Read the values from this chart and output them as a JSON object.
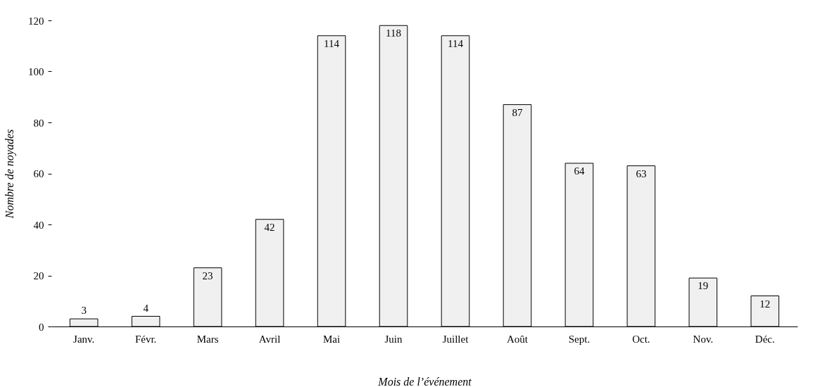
{
  "chart_data": {
    "type": "bar",
    "xlabel": "Mois de l’événement",
    "ylabel": "Nombre de noyades",
    "categories": [
      "Janv.",
      "Févr.",
      "Mars",
      "Avril",
      "Mai",
      "Juin",
      "Juillet",
      "Août",
      "Sept.",
      "Oct.",
      "Nov.",
      "Déc."
    ],
    "values": [
      3,
      4,
      23,
      42,
      114,
      118,
      114,
      87,
      64,
      63,
      19,
      12
    ],
    "color": "#f0f0f0",
    "ylim": [
      0,
      120
    ],
    "yticks": [
      0,
      20,
      40,
      60,
      80,
      100,
      120
    ],
    "grid": false,
    "data_labels": true
  }
}
